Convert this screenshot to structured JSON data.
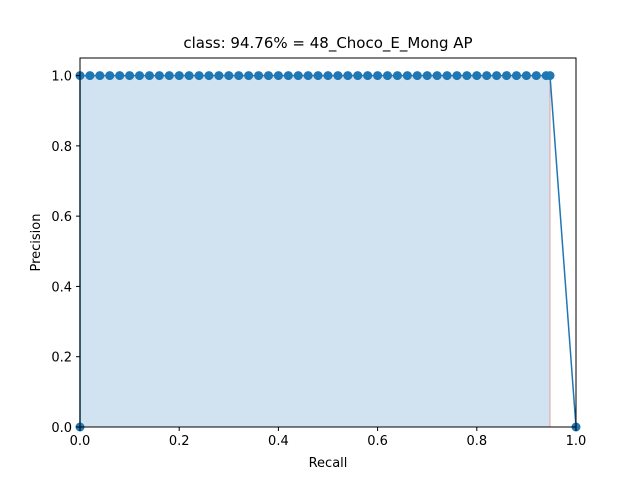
{
  "chart_data": {
    "type": "area",
    "title": "class: 94.76% = 48_Choco_E_Mong AP",
    "xlabel": "Recall",
    "ylabel": "Precision",
    "xlim": [
      0.0,
      1.0
    ],
    "ylim": [
      0.0,
      1.05
    ],
    "xticks": [
      "0.0",
      "0.2",
      "0.4",
      "0.6",
      "0.8",
      "1.0"
    ],
    "yticks": [
      "0.0",
      "0.2",
      "0.4",
      "0.6",
      "0.8",
      "1.0"
    ],
    "grid": false,
    "legend": "none",
    "series": [
      {
        "role": "precision-recall-curve",
        "color": "#1f77b4",
        "marker": "circle",
        "x": [
          0.0,
          0.0,
          0.02,
          0.04,
          0.06,
          0.08,
          0.1,
          0.12,
          0.14,
          0.16,
          0.18,
          0.2,
          0.22,
          0.24,
          0.26,
          0.28,
          0.3,
          0.32,
          0.34,
          0.36,
          0.38,
          0.4,
          0.42,
          0.44,
          0.46,
          0.48,
          0.5,
          0.52,
          0.54,
          0.56,
          0.58,
          0.6,
          0.62,
          0.64,
          0.66,
          0.68,
          0.7,
          0.72,
          0.74,
          0.76,
          0.78,
          0.8,
          0.82,
          0.84,
          0.86,
          0.88,
          0.9,
          0.92,
          0.94,
          0.9476,
          1.0
        ],
        "y": [
          0.0,
          1.0,
          1.0,
          1.0,
          1.0,
          1.0,
          1.0,
          1.0,
          1.0,
          1.0,
          1.0,
          1.0,
          1.0,
          1.0,
          1.0,
          1.0,
          1.0,
          1.0,
          1.0,
          1.0,
          1.0,
          1.0,
          1.0,
          1.0,
          1.0,
          1.0,
          1.0,
          1.0,
          1.0,
          1.0,
          1.0,
          1.0,
          1.0,
          1.0,
          1.0,
          1.0,
          1.0,
          1.0,
          1.0,
          1.0,
          1.0,
          1.0,
          1.0,
          1.0,
          1.0,
          1.0,
          1.0,
          1.0,
          1.0,
          1.0,
          0.0
        ]
      },
      {
        "role": "interpolated-precision-area",
        "color": "#d1e3f0",
        "edge_color": "#e8a0a0",
        "x": [
          0.0,
          0.0,
          0.9476,
          0.9476
        ],
        "y": [
          0.0,
          1.0,
          1.0,
          0.0
        ]
      }
    ]
  }
}
